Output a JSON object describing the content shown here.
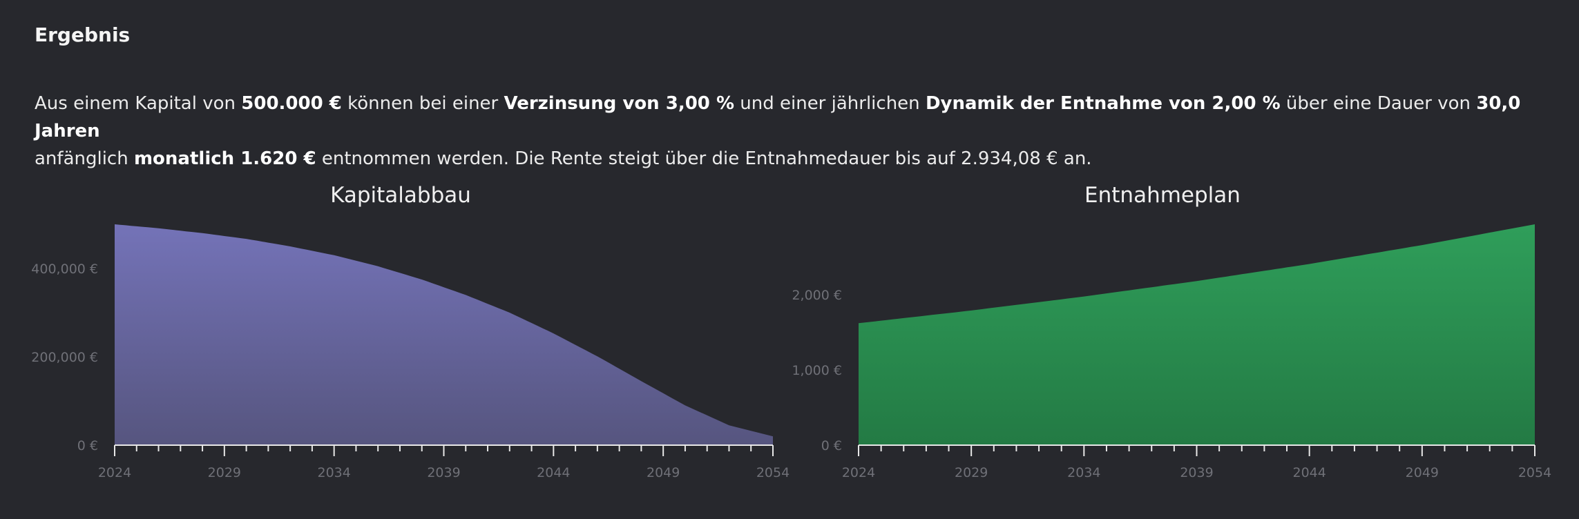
{
  "result": {
    "title": "Ergebnis",
    "line1": [
      {
        "t": "Aus einem Kapital von ",
        "b": false
      },
      {
        "t": "500.000 €",
        "b": true
      },
      {
        "t": " können bei einer ",
        "b": false
      },
      {
        "t": "Verzinsung von 3,00 %",
        "b": true
      },
      {
        "t": " und einer jährlichen ",
        "b": false
      },
      {
        "t": "Dynamik der Entnahme von 2,00 %",
        "b": true
      },
      {
        "t": " über eine Dauer von ",
        "b": false
      },
      {
        "t": "30,0 Jahren",
        "b": true
      }
    ],
    "line2": [
      {
        "t": "anfänglich ",
        "b": false
      },
      {
        "t": "monatlich 1.620 €",
        "b": true
      },
      {
        "t": " entnommen werden. Die Rente steigt über die Entnahmedauer bis auf 2.934,08 € an.",
        "b": false
      }
    ]
  },
  "colors": {
    "background": "#27282d",
    "kapital_top": "#7473b8",
    "kapital_bottom": "#56557f",
    "entnahme_top": "#2f9e5a",
    "entnahme_bottom": "#237a44"
  },
  "chart_data": [
    {
      "type": "area",
      "title": "Kapitalabbau",
      "xlabel": "",
      "ylabel": "",
      "x_ticks": [
        2024,
        2029,
        2034,
        2039,
        2044,
        2049,
        2054
      ],
      "y_ticks": [
        0,
        200000,
        400000
      ],
      "y_tick_labels": [
        "0 €",
        "200,000 €",
        "400,000 €"
      ],
      "xlim": [
        2024,
        2054
      ],
      "ylim": [
        0,
        500000
      ],
      "grid": false,
      "series": [
        {
          "color": "#6a69a8",
          "x": [
            2024,
            2026,
            2028,
            2030,
            2032,
            2034,
            2036,
            2038,
            2040,
            2042,
            2044,
            2046,
            2048,
            2050,
            2052,
            2054
          ],
          "y": [
            500000,
            491000,
            480000,
            467000,
            450000,
            430000,
            405000,
            375000,
            340000,
            300000,
            253000,
            201000,
            145000,
            90000,
            45000,
            20000
          ]
        }
      ]
    },
    {
      "type": "area",
      "title": "Entnahmeplan",
      "xlabel": "",
      "ylabel": "",
      "x_ticks": [
        2024,
        2029,
        2034,
        2039,
        2044,
        2049,
        2054
      ],
      "y_ticks": [
        0,
        1000,
        2000
      ],
      "y_tick_labels": [
        "0 €",
        "1,000 €",
        "2,000 €"
      ],
      "xlim": [
        2024,
        2054
      ],
      "ylim": [
        0,
        2934.08
      ],
      "grid": false,
      "series": [
        {
          "color": "#2b9051",
          "x": [
            2024,
            2029,
            2034,
            2039,
            2044,
            2049,
            2054
          ],
          "y": [
            1620,
            1789,
            1975,
            2180,
            2407,
            2658,
            2934.08
          ]
        }
      ]
    }
  ]
}
